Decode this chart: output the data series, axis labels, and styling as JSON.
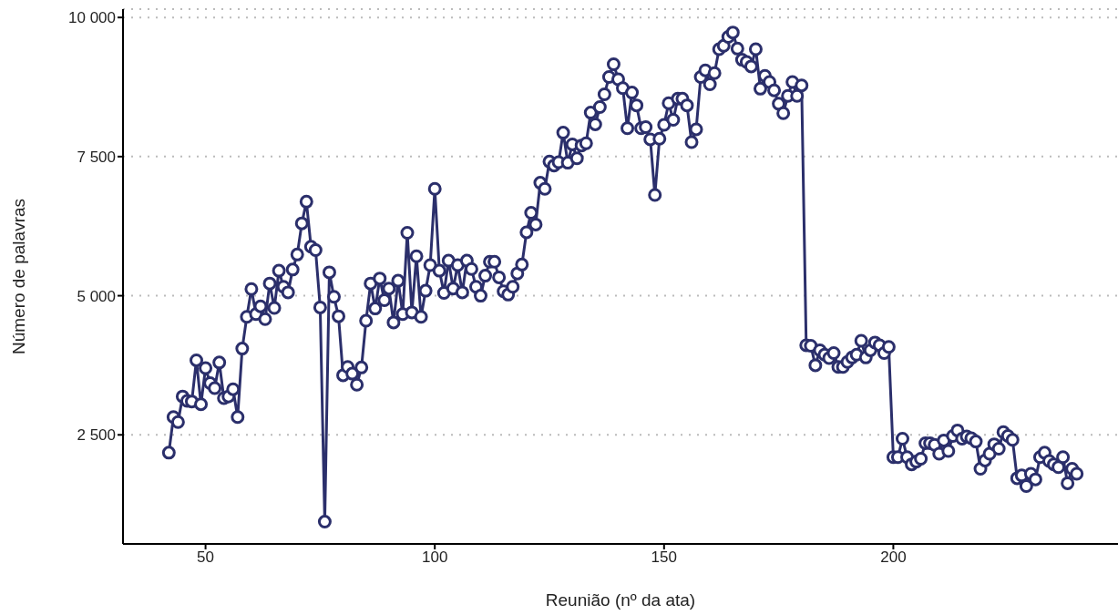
{
  "chart_data": {
    "type": "line",
    "xlabel": "Reunião (nº da ata)",
    "ylabel": "Número de palavras",
    "x": [
      42,
      43,
      44,
      45,
      46,
      47,
      48,
      49,
      50,
      51,
      52,
      53,
      54,
      55,
      56,
      57,
      58,
      59,
      60,
      61,
      62,
      63,
      64,
      65,
      66,
      67,
      68,
      69,
      70,
      71,
      72,
      73,
      74,
      75,
      76,
      77,
      78,
      79,
      80,
      81,
      82,
      83,
      84,
      85,
      86,
      87,
      88,
      89,
      90,
      91,
      92,
      93,
      94,
      95,
      96,
      97,
      98,
      99,
      100,
      101,
      102,
      103,
      104,
      105,
      106,
      107,
      108,
      109,
      110,
      111,
      112,
      113,
      114,
      115,
      116,
      117,
      118,
      119,
      120,
      121,
      122,
      123,
      124,
      125,
      126,
      127,
      128,
      129,
      130,
      131,
      132,
      133,
      134,
      135,
      136,
      137,
      138,
      139,
      140,
      141,
      142,
      143,
      144,
      145,
      146,
      147,
      148,
      149,
      150,
      151,
      152,
      153,
      154,
      155,
      156,
      157,
      158,
      159,
      160,
      161,
      162,
      163,
      164,
      165,
      166,
      167,
      168,
      169,
      170,
      171,
      172,
      173,
      174,
      175,
      176,
      177,
      178,
      179,
      180,
      181,
      182,
      183,
      184,
      185,
      186,
      187,
      188,
      189,
      190,
      191,
      192,
      193,
      194,
      195,
      196,
      197,
      198,
      199,
      200,
      201,
      202,
      203,
      204,
      205,
      206,
      207,
      208,
      209,
      210,
      211,
      212,
      213,
      214,
      215,
      216,
      217,
      218,
      219,
      220,
      221,
      222,
      223,
      224,
      225,
      226,
      227,
      228,
      229,
      230,
      231,
      232,
      233,
      234,
      235,
      236,
      237,
      238,
      239,
      240
    ],
    "series": [
      {
        "color": "#2b2f6b",
        "values": [
          2180,
          2820,
          2730,
          3190,
          3110,
          3100,
          3840,
          3050,
          3700,
          3430,
          3340,
          3800,
          3160,
          3190,
          3320,
          2820,
          4050,
          4620,
          5120,
          4670,
          4810,
          4580,
          5220,
          4780,
          5450,
          5160,
          5060,
          5470,
          5740,
          6300,
          6690,
          5880,
          5820,
          4790,
          940,
          5420,
          4980,
          4630,
          3570,
          3720,
          3600,
          3400,
          3710,
          4550,
          5220,
          4770,
          5310,
          4920,
          5130,
          4520,
          5270,
          4670,
          6130,
          4700,
          5710,
          4620,
          5090,
          5550,
          6920,
          5450,
          5050,
          5630,
          5130,
          5550,
          5060,
          5630,
          5480,
          5160,
          5000,
          5360,
          5610,
          5610,
          5330,
          5080,
          5020,
          5160,
          5400,
          5560,
          6140,
          6490,
          6280,
          7030,
          6920,
          7410,
          7340,
          7400,
          7930,
          7390,
          7720,
          7470,
          7700,
          7740,
          8290,
          8080,
          8390,
          8620,
          8930,
          9160,
          8890,
          8730,
          8010,
          8650,
          8420,
          8010,
          8030,
          7810,
          6810,
          7820,
          8070,
          8460,
          8160,
          8540,
          8540,
          8420,
          7760,
          7990,
          8930,
          9050,
          8800,
          9000,
          9430,
          9490,
          9650,
          9730,
          9440,
          9240,
          9200,
          9120,
          9430,
          8720,
          8950,
          8840,
          8690,
          8450,
          8280,
          8590,
          8840,
          8590,
          8780,
          4110,
          4100,
          3750,
          4020,
          3940,
          3880,
          3970,
          3720,
          3720,
          3810,
          3890,
          3940,
          4190,
          3890,
          4020,
          4160,
          4110,
          3970,
          4080,
          2100,
          2100,
          2430,
          2100,
          1970,
          2020,
          2070,
          2350,
          2350,
          2320,
          2160,
          2400,
          2210,
          2480,
          2580,
          2430,
          2470,
          2440,
          2380,
          1890,
          2040,
          2160,
          2330,
          2250,
          2550,
          2480,
          2410,
          1720,
          1770,
          1580,
          1800,
          1700,
          2100,
          2180,
          2030,
          1970,
          1920,
          2100,
          1630,
          1890,
          1800
        ]
      }
    ],
    "xlim": [
      32,
      249
    ],
    "xticks": [
      50,
      100,
      150,
      200
    ],
    "ylim": [
      540,
      10150
    ],
    "yticks": [
      {
        "value": 2500,
        "label": "2 500"
      },
      {
        "value": 5000,
        "label": "5 000"
      },
      {
        "value": 7500,
        "label": "7 500"
      },
      {
        "value": 10000,
        "label": "10 000"
      }
    ],
    "grid": "y",
    "legend": false,
    "marker": "circle",
    "line_style": "solid"
  }
}
